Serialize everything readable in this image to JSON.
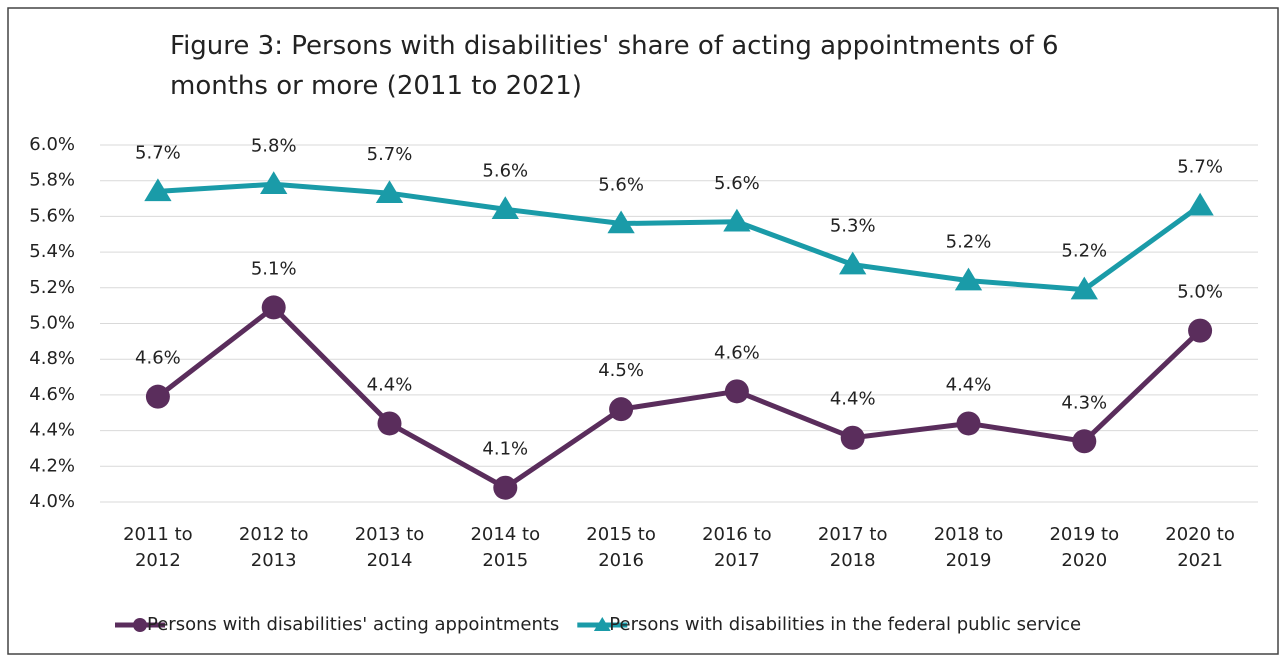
{
  "chart_data": {
    "type": "line",
    "title": "Figure 3: Persons with disabilities' share of acting appointments of 6 months or more (2011 to 2021)",
    "categories": [
      "2011 to 2012",
      "2012 to 2013",
      "2013 to 2014",
      "2014 to 2015",
      "2015 to 2016",
      "2016 to 2017",
      "2017 to 2018",
      "2018 to 2019",
      "2019 to 2020",
      "2020 to 2021"
    ],
    "series": [
      {
        "name": "Persons with disabilities' acting appointments",
        "color": "#5a2d5c",
        "marker": "circle",
        "values": [
          4.59,
          5.09,
          4.44,
          4.08,
          4.52,
          4.62,
          4.36,
          4.44,
          4.34,
          4.96
        ],
        "value_labels": [
          "4.6%",
          "5.1%",
          "4.4%",
          "4.1%",
          "4.5%",
          "4.6%",
          "4.4%",
          "4.4%",
          "4.3%",
          "5.0%"
        ]
      },
      {
        "name": "Persons with disabilities in the federal public service",
        "color": "#1a9ba8",
        "marker": "triangle",
        "values": [
          5.74,
          5.78,
          5.73,
          5.64,
          5.56,
          5.57,
          5.33,
          5.24,
          5.19,
          5.66
        ],
        "value_labels": [
          "5.7%",
          "5.8%",
          "5.7%",
          "5.6%",
          "5.6%",
          "5.6%",
          "5.3%",
          "5.2%",
          "5.2%",
          "5.7%"
        ]
      }
    ],
    "ylim": [
      4.0,
      6.0
    ],
    "yticks": [
      {
        "value": 4.0,
        "label": "4.0%"
      },
      {
        "value": 4.2,
        "label": "4.2%"
      },
      {
        "value": 4.4,
        "label": "4.4%"
      },
      {
        "value": 4.6,
        "label": "4.6%"
      },
      {
        "value": 4.8,
        "label": "4.8%"
      },
      {
        "value": 5.0,
        "label": "5.0%"
      },
      {
        "value": 5.2,
        "label": "5.2%"
      },
      {
        "value": 5.4,
        "label": "5.4%"
      },
      {
        "value": 5.6,
        "label": "5.6%"
      },
      {
        "value": 5.8,
        "label": "5.8%"
      },
      {
        "value": 6.0,
        "label": "6.0%"
      }
    ],
    "grid": true,
    "legend": "bottom"
  }
}
